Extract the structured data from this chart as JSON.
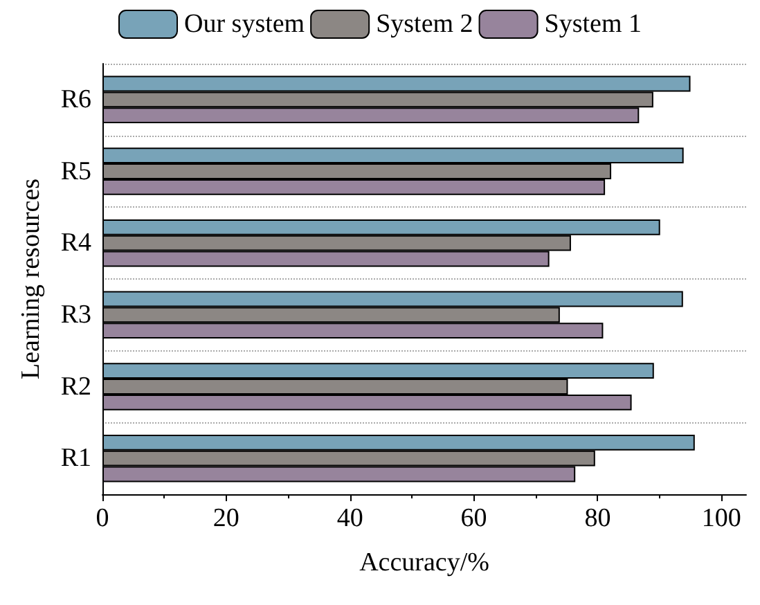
{
  "chart_data": {
    "type": "bar",
    "orientation": "horizontal",
    "xlabel": "Accuracy/%",
    "ylabel": "Learning resources",
    "categories": [
      "R6",
      "R5",
      "R4",
      "R3",
      "R2",
      "R1"
    ],
    "series": [
      {
        "name": "Our system",
        "color": "#78a3b8",
        "values": [
          95.0,
          93.9,
          90.1,
          93.8,
          89.1,
          95.7
        ]
      },
      {
        "name": "System 2",
        "color": "#8c8784",
        "values": [
          89.0,
          82.2,
          75.7,
          73.9,
          75.2,
          79.6
        ]
      },
      {
        "name": "System 1",
        "color": "#97849c",
        "values": [
          86.7,
          81.2,
          72.2,
          80.9,
          85.5,
          76.4
        ]
      }
    ],
    "xlim": [
      0,
      104
    ],
    "xticks": [
      0,
      20,
      40,
      60,
      80,
      100
    ],
    "grid": "y",
    "legend": "top"
  }
}
